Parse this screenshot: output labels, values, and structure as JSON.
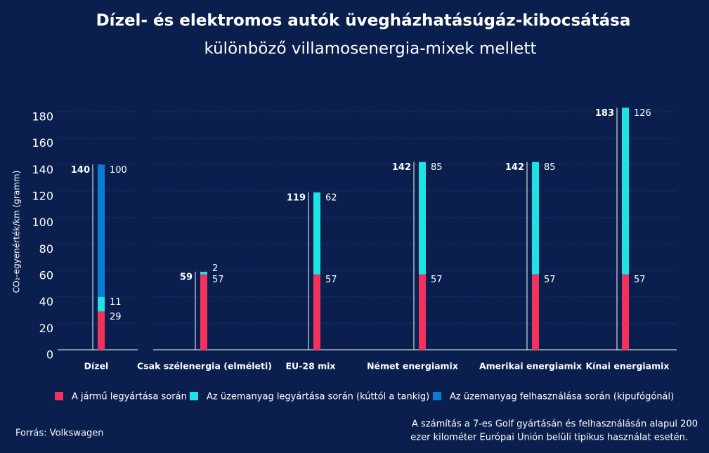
{
  "chart_data": {
    "type": "bar",
    "stacked": true,
    "title": "Dízel- és elektromos autók üvegházhatásúgáz-kibocsátása",
    "subtitle": "különböző villamosenergia-mixek mellett",
    "y_label": "CO₂-egyenérték/km (gramm)",
    "categories": [
      "Dízel",
      "Csak szélenergia (elméleti)",
      "EU-28 mix",
      "Német energiamix",
      "Amerikai energiamix",
      "Kínai energiamix"
    ],
    "series": [
      {
        "name": "A jármű legyártása során",
        "color": "#f2325c",
        "values": [
          29,
          57,
          57,
          57,
          57,
          57
        ]
      },
      {
        "name": "Az üzemanyag legyártása során (kúttól a tankig)",
        "color": "#1fe3e3",
        "values": [
          11,
          2,
          62,
          85,
          85,
          126
        ]
      },
      {
        "name": "Az üzemanyag felhasználása során (kipufógónál)",
        "color": "#0b7bd6",
        "values": [
          100,
          null,
          null,
          null,
          null,
          null
        ]
      }
    ],
    "totals": [
      140,
      59,
      119,
      142,
      142,
      183
    ],
    "ylim": [
      0,
      185
    ],
    "yticks": [
      0,
      20,
      40,
      60,
      80,
      100,
      120,
      140,
      160,
      180
    ],
    "grid": true,
    "source": "Forrás: Volkswagen",
    "note": [
      "A számítás a 7-es Golf gyártásán és felhasználásán alapul 200",
      "ezer kilométer Európai Unión belüli tipikus használat esetén."
    ]
  }
}
